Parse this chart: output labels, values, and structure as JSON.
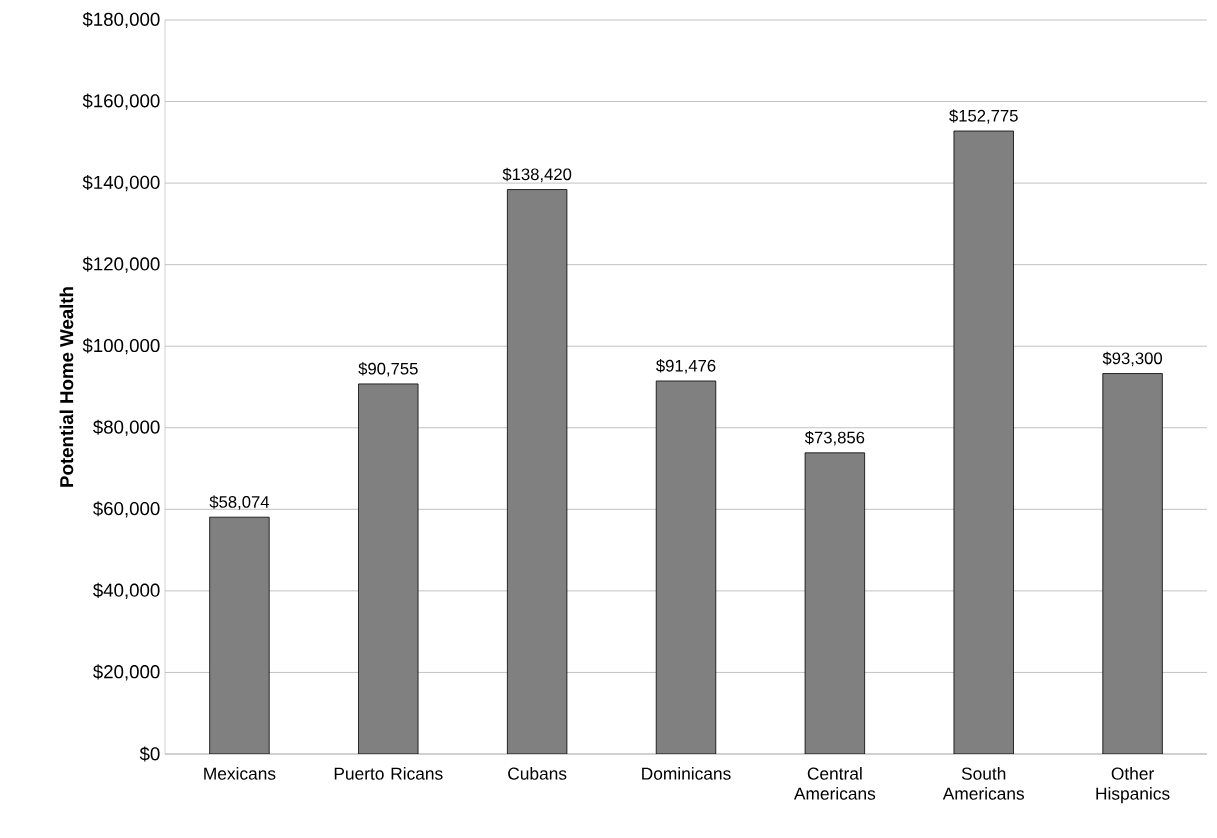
{
  "chart_data": {
    "type": "bar",
    "ylabel": "Potential Home Wealth",
    "categories": [
      "Mexicans",
      "Puerto Ricans",
      "Cubans",
      "Dominicans",
      "Central Americans",
      "South Americans",
      "Other Hispanics"
    ],
    "values": [
      58074,
      90755,
      138420,
      91476,
      73856,
      152775,
      93300
    ],
    "value_labels": [
      "$58,074",
      "$90,755",
      "$138,420",
      "$91,476",
      "$73,856",
      "$152,775",
      "$93,300"
    ],
    "color": "#808080",
    "ylim": [
      0,
      180000
    ],
    "yticks": [
      {
        "value": 0,
        "label": "$0"
      },
      {
        "value": 20000,
        "label": "$20,000"
      },
      {
        "value": 40000,
        "label": "$40,000"
      },
      {
        "value": 60000,
        "label": "$60,000"
      },
      {
        "value": 80000,
        "label": "$80,000"
      },
      {
        "value": 100000,
        "label": "$100,000"
      },
      {
        "value": 120000,
        "label": "$120,000"
      },
      {
        "value": 140000,
        "label": "$140,000"
      },
      {
        "value": 160000,
        "label": "$160,000"
      },
      {
        "value": 180000,
        "label": "$180,000"
      }
    ],
    "grid": "y"
  }
}
